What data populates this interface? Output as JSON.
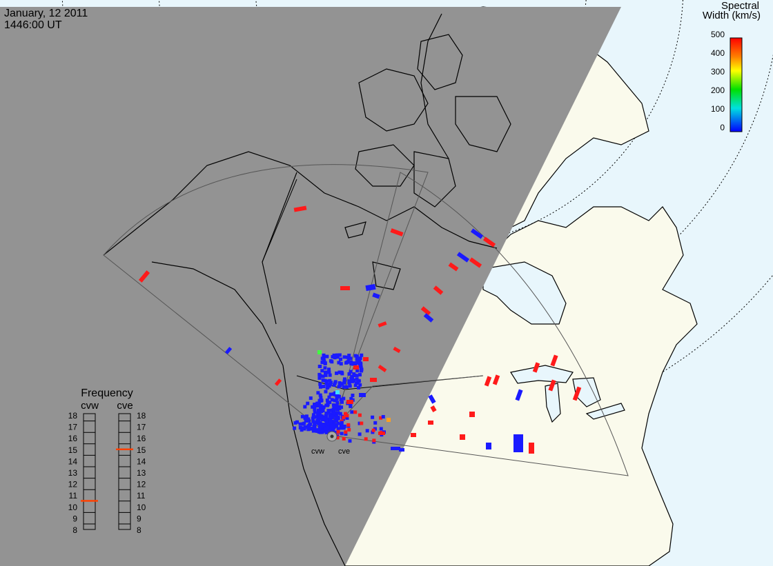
{
  "header": {
    "date": "January, 12 2011",
    "time": "1446:00 UT"
  },
  "colorbar": {
    "title_line1": "Spectral",
    "title_line2": "Width (km/s)",
    "ticks": [
      "500",
      "400",
      "300",
      "200",
      "100",
      "0"
    ],
    "gradient_colors": [
      "#ff0000",
      "#ff7f00",
      "#ffff00",
      "#00e000",
      "#00e0e0",
      "#0000ff"
    ]
  },
  "frequency_panel": {
    "title": "Frequency",
    "radar_labels": [
      "cvw",
      "cve"
    ],
    "ticks": [
      "18",
      "17",
      "16",
      "15",
      "14",
      "13",
      "12",
      "11",
      "10",
      "9",
      "8"
    ],
    "cvw_frequency_mhz": 10.5,
    "cve_frequency_mhz": 15,
    "marker_color": "#ff4000"
  },
  "radars": {
    "labels": [
      "cvw",
      "cve"
    ]
  },
  "colors": {
    "night_shade": "#939393",
    "ocean": "#e8f6fc",
    "land": "#fafaec",
    "coastline": "#000000",
    "fov_outline": "#555555"
  },
  "echo_colors": {
    "low": "#1a1aff",
    "high": "#ff1a1a",
    "mid_green": "#40ff40",
    "mid_cyan": "#40e0ff",
    "mid_orange": "#ffa020"
  }
}
